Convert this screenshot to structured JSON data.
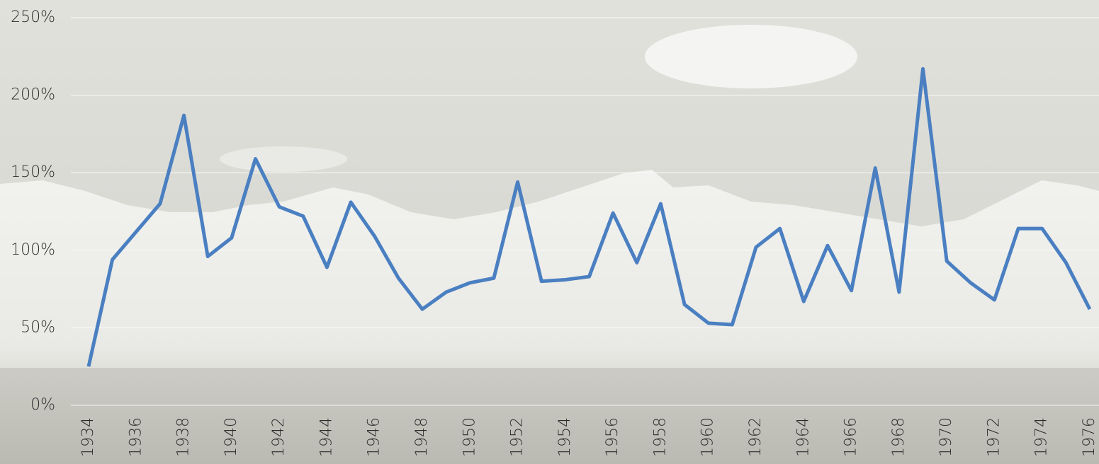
{
  "chart_data": {
    "type": "line",
    "x": [
      1934,
      1935,
      1936,
      1937,
      1938,
      1939,
      1940,
      1941,
      1942,
      1943,
      1944,
      1945,
      1946,
      1947,
      1948,
      1949,
      1950,
      1951,
      1952,
      1953,
      1954,
      1955,
      1956,
      1957,
      1958,
      1959,
      1960,
      1961,
      1962,
      1963,
      1964,
      1965,
      1966,
      1967,
      1968,
      1969,
      1970,
      1971,
      1972,
      1973,
      1974,
      1975,
      1976
    ],
    "series": [
      {
        "color": "#4a7fc1",
        "values": [
          25,
          94,
          112,
          130,
          187,
          96,
          108,
          159,
          128,
          122,
          89,
          131,
          109,
          82,
          62,
          73,
          79,
          82,
          144,
          80,
          81,
          83,
          124,
          92,
          130,
          65,
          53,
          52,
          102,
          114,
          67,
          103,
          74,
          153,
          73,
          217,
          93,
          79,
          68,
          114,
          114,
          92,
          62
        ]
      }
    ],
    "xlim": [
      1934,
      1976
    ],
    "xticks": [
      1934,
      1936,
      1938,
      1940,
      1942,
      1944,
      1946,
      1948,
      1950,
      1952,
      1954,
      1956,
      1958,
      1960,
      1962,
      1964,
      1966,
      1968,
      1970,
      1972,
      1974,
      1976
    ],
    "ylim": [
      0,
      250
    ],
    "yticks": [
      {
        "value": 0,
        "label": "0%"
      },
      {
        "value": 50,
        "label": "50%"
      },
      {
        "value": 100,
        "label": "100%"
      },
      {
        "value": 150,
        "label": "150%"
      },
      {
        "value": 200,
        "label": "200%"
      },
      {
        "value": 250,
        "label": "250%"
      }
    ],
    "grid": true
  }
}
